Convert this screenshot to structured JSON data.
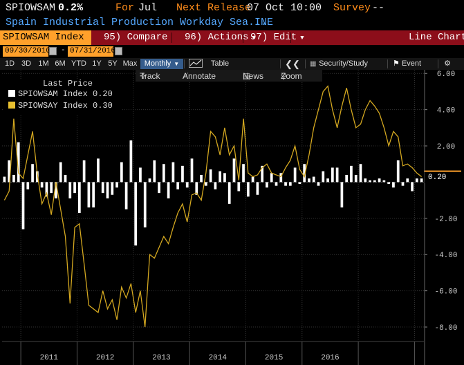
{
  "header": {
    "ticker": "SPIOWSAM",
    "value": "0.2%",
    "for_label": "For",
    "for_value": "Jul",
    "next_release_label": "Next Release",
    "next_release_value": "07 Oct 10:00",
    "survey_label": "Survey",
    "survey_value": "--",
    "description": "Spain Industrial Production Workday Sea...",
    "source": "INE"
  },
  "toolbar": {
    "index_label": "SPIOWSAM Index",
    "compare_label": "95) Compare",
    "actions_label": "96) Actions",
    "edit_label": "97) Edit",
    "chart_type_label": "Line Chart"
  },
  "dates": {
    "start": "09/30/2010",
    "end": "07/31/2016",
    "separator": "-"
  },
  "periods": [
    "1D",
    "3D",
    "1M",
    "6M",
    "YTD",
    "1Y",
    "5Y",
    "Max"
  ],
  "frequency": "Monthly",
  "view_table_label": "Table",
  "security_study_label": "Security/Study",
  "event_label": "Event",
  "tools": {
    "track_label": "Track",
    "annotate_label": "Annotate",
    "news_label": "News",
    "zoom_label": "Zoom"
  },
  "legend": {
    "title": "Last Price",
    "items": [
      {
        "label": "SPIOWSAM Index",
        "value": "0.20",
        "color": "#ffffff"
      },
      {
        "label": "SPIOWSAY Index",
        "value": "0.30",
        "color": "#e8c030"
      }
    ]
  },
  "last_value_tag": "0.20",
  "colors": {
    "accent_orange": "#ffa12b",
    "toolbar_red": "#8c0e1a",
    "header_orange": "#ff8c1a",
    "header_blue": "#55a8ff",
    "line_yellow": "#d4a820"
  },
  "icons": [
    "grid-icon",
    "back-icon",
    "gear-icon",
    "flag-icon",
    "chart-icon",
    "crosshair-icon",
    "pencil-icon",
    "zoom-icon",
    "calendar-icon"
  ],
  "chart_data": {
    "type": "bar",
    "ylim": [
      -8.8,
      6.2
    ],
    "yticks": [
      "6.00",
      "4.00",
      "2.00",
      "-2.00",
      "-4.00",
      "-6.00",
      "-8.00"
    ],
    "ytick_values": [
      6,
      4,
      2,
      -2,
      -4,
      -6,
      -8
    ],
    "year_labels": [
      "2011",
      "2012",
      "2013",
      "2014",
      "2015",
      "2016"
    ],
    "categories_start": "2010-09",
    "series": [
      {
        "name": "SPIOWSAM Index",
        "type": "bar",
        "values": [
          0.3,
          1.2,
          0.4,
          2.2,
          -2.6,
          -0.4,
          1.0,
          0.6,
          -0.3,
          -0.8,
          -0.6,
          -0.9,
          1.1,
          0.4,
          -0.9,
          -0.6,
          -1.7,
          1.2,
          -1.4,
          -1.4,
          1.3,
          -0.6,
          -0.9,
          -0.7,
          -0.3,
          1.1,
          -1.5,
          2.3,
          -3.5,
          0.8,
          -2.5,
          0.2,
          1.2,
          -0.6,
          1.0,
          -0.9,
          1.1,
          -0.4,
          0.9,
          -0.3,
          1.3,
          -0.7,
          0.4,
          -0.2,
          0.7,
          -0.4,
          0.6,
          0.5,
          -1.2,
          1.3,
          -0.5,
          1.0,
          -0.8,
          0.3,
          -0.7,
          0.9,
          -0.3,
          0.5,
          -0.2,
          0.5,
          -0.2,
          -0.2,
          0.8,
          -0.1,
          1.0,
          0.2,
          0.3,
          -0.2,
          0.6,
          0.2,
          0.8,
          0.8,
          -1.4,
          0.4,
          0.9,
          0.4,
          1.0,
          0.2,
          0.1,
          0.1,
          0.2,
          0.1,
          -0.1,
          -0.3,
          1.2,
          -0.2,
          0.2,
          -0.5,
          0.2,
          0.2
        ],
        "color": "#ffffff"
      },
      {
        "name": "SPIOWSAY Index",
        "type": "line",
        "values": [
          -1.0,
          -0.5,
          3.5,
          0.5,
          0.2,
          1.5,
          2.8,
          0.5,
          -1.2,
          -0.6,
          -1.8,
          0.0,
          -1.5,
          -3.0,
          -6.7,
          -2.5,
          -2.3,
          -4.5,
          -6.8,
          -7.0,
          -7.2,
          -6.0,
          -7.0,
          -6.5,
          -7.6,
          -5.8,
          -6.4,
          -5.6,
          -7.2,
          -6.0,
          -8.0,
          -4.0,
          -4.2,
          -3.6,
          -3.0,
          -3.4,
          -2.5,
          -1.7,
          -1.2,
          -2.2,
          -0.7,
          -0.6,
          -1.0,
          0.5,
          2.8,
          2.5,
          1.5,
          3.0,
          1.5,
          2.0,
          0.1,
          3.5,
          0.5,
          0.3,
          0.4,
          0.8,
          1.0,
          0.5,
          0.4,
          0.3,
          0.8,
          1.2,
          2.0,
          0.7,
          0.3,
          1.5,
          3.0,
          4.0,
          5.0,
          5.3,
          4.0,
          3.0,
          4.2,
          5.2,
          4.0,
          3.0,
          3.2,
          4.0,
          4.5,
          4.2,
          3.8,
          3.0,
          2.0,
          2.8,
          2.5,
          0.9,
          1.0,
          0.8,
          0.5,
          0.3
        ],
        "color": "#d4a820"
      }
    ]
  }
}
